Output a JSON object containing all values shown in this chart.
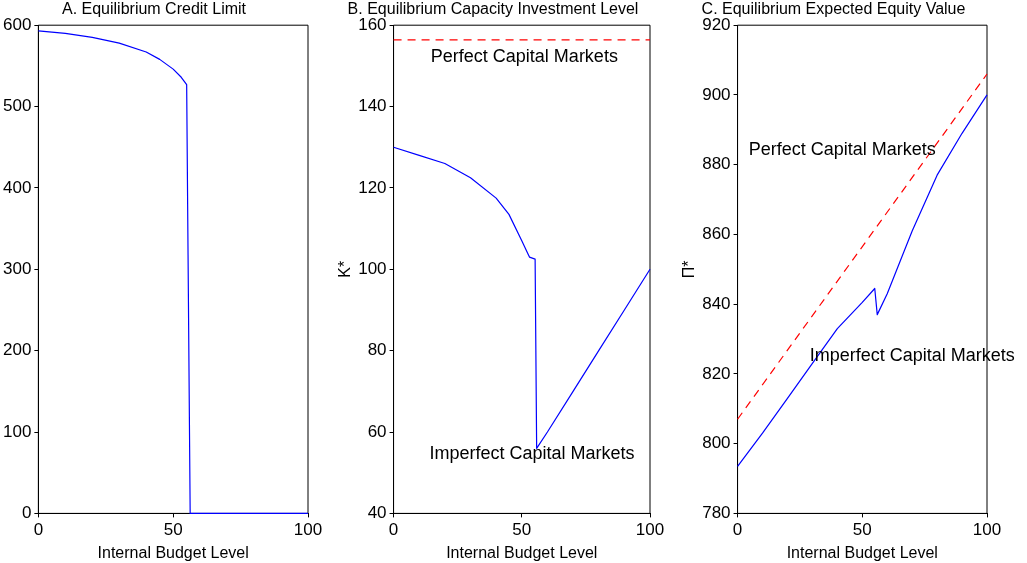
{
  "chart_data": [
    {
      "type": "line",
      "title": "A. Equilibrium Credit Limit",
      "xlabel": "Internal Budget Level",
      "xlim": [
        0,
        100
      ],
      "xticks": [
        0,
        50,
        100
      ],
      "ylim": [
        0,
        600
      ],
      "yticks": [
        0,
        100,
        200,
        300,
        400,
        500,
        600
      ],
      "grid": false,
      "legend": false,
      "marker": "none",
      "series": [
        {
          "color": "#0000ff",
          "line_style": "solid",
          "x": [
            0,
            10,
            20,
            30,
            40,
            45,
            50,
            53,
            55,
            56.3,
            100
          ],
          "values": [
            593,
            590,
            585,
            578,
            567,
            558,
            546,
            536,
            527,
            0,
            0
          ]
        }
      ]
    },
    {
      "type": "line",
      "title": "B. Equilibrium Capacity Investment Level",
      "xlabel": "Internal Budget Level",
      "ylabel": "K*",
      "xlim": [
        0,
        100
      ],
      "xticks": [
        0,
        50,
        100
      ],
      "ylim": [
        40,
        160
      ],
      "yticks": [
        40,
        60,
        80,
        100,
        120,
        140,
        160
      ],
      "grid": false,
      "legend": false,
      "marker": "none",
      "series": [
        {
          "name": "Perfect Capital Markets",
          "color": "#ff0000",
          "line_style": "dashed",
          "x": [
            0,
            100
          ],
          "values": [
            156.4,
            156.4
          ]
        },
        {
          "name": "Imperfect Capital Markets",
          "color": "#0000ff",
          "line_style": "solid",
          "x": [
            0,
            10,
            20,
            30,
            40,
            45,
            50,
            53,
            55.2,
            55.8,
            60,
            70,
            80,
            90,
            100
          ],
          "values": [
            130,
            128,
            126,
            122.5,
            117.5,
            113.5,
            107,
            103,
            102.5,
            56,
            60,
            70,
            80,
            90,
            100
          ]
        }
      ]
    },
    {
      "type": "line",
      "title": "C. Equilibrium Expected Equity Value",
      "xlabel": "Internal Budget Level",
      "ylabel": "Π*",
      "xlim": [
        0,
        100
      ],
      "xticks": [
        0,
        50,
        100
      ],
      "ylim": [
        780,
        920
      ],
      "yticks": [
        780,
        800,
        820,
        840,
        860,
        880,
        900,
        920
      ],
      "grid": false,
      "legend": false,
      "marker": "none",
      "series": [
        {
          "name": "Perfect Capital Markets",
          "color": "#ff0000",
          "line_style": "dashed",
          "x": [
            0,
            100
          ],
          "values": [
            807,
            906
          ]
        },
        {
          "name": "Imperfect Capital Markets",
          "color": "#0000ff",
          "line_style": "solid",
          "x": [
            0,
            10,
            20,
            30,
            40,
            50,
            55,
            56,
            60,
            70,
            80,
            90,
            100
          ],
          "values": [
            793.5,
            803,
            813,
            823,
            833,
            840.5,
            844.5,
            837,
            843,
            861,
            877,
            889,
            900
          ]
        }
      ]
    }
  ]
}
